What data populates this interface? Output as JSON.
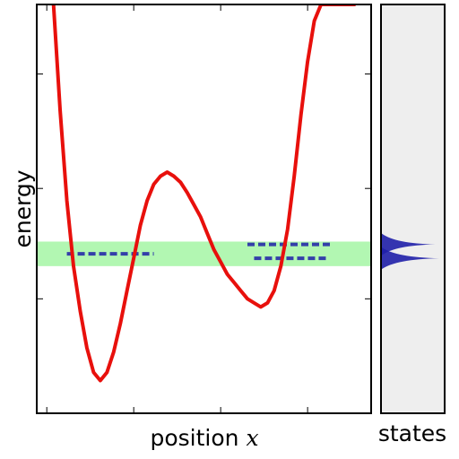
{
  "chart_data": {
    "type": "line",
    "main_panel": {
      "xlabel_text": "position",
      "xlabel_var": "x",
      "ylabel": "energy",
      "xlim": [
        0,
        1
      ],
      "ylim": [
        0,
        1
      ],
      "xticks": [
        0.03,
        0.29,
        0.55,
        0.81
      ],
      "yticks": [
        0.28,
        0.55,
        0.83
      ],
      "potential_curve": {
        "color": "#e8100c",
        "x": [
          0.05,
          0.07,
          0.09,
          0.11,
          0.13,
          0.15,
          0.17,
          0.19,
          0.21,
          0.23,
          0.25,
          0.27,
          0.29,
          0.31,
          0.33,
          0.35,
          0.37,
          0.39,
          0.41,
          0.43,
          0.45,
          0.47,
          0.49,
          0.51,
          0.53,
          0.55,
          0.57,
          0.59,
          0.61,
          0.63,
          0.65,
          0.67,
          0.69,
          0.71,
          0.73,
          0.75,
          0.77,
          0.79,
          0.81,
          0.83,
          0.85,
          0.87,
          0.89,
          0.91,
          0.93,
          0.95
        ],
        "y": [
          1.0,
          0.74,
          0.52,
          0.36,
          0.25,
          0.16,
          0.1,
          0.08,
          0.1,
          0.15,
          0.22,
          0.3,
          0.38,
          0.46,
          0.52,
          0.56,
          0.58,
          0.59,
          0.58,
          0.565,
          0.54,
          0.51,
          0.48,
          0.44,
          0.4,
          0.37,
          0.34,
          0.32,
          0.3,
          0.28,
          0.27,
          0.26,
          0.27,
          0.3,
          0.36,
          0.45,
          0.58,
          0.73,
          0.86,
          0.96,
          1.0,
          1.0,
          1.0,
          1.0,
          1.0,
          1.0
        ]
      },
      "energy_band": {
        "color": "#b2f7b2",
        "y_low": 0.36,
        "y_high": 0.42
      },
      "levels": [
        {
          "y": 0.39,
          "x_start": 0.09,
          "x_end": 0.35,
          "color": "#1f1fa8"
        },
        {
          "y": 0.413,
          "x_start": 0.63,
          "x_end": 0.88,
          "color": "#1f1fa8"
        },
        {
          "y": 0.379,
          "x_start": 0.65,
          "x_end": 0.87,
          "color": "#1f1fa8"
        }
      ]
    },
    "side_panel": {
      "xlabel": "states",
      "background": "#eeeeee",
      "peaks": [
        {
          "y": 0.413,
          "height": 0.93
        },
        {
          "y": 0.379,
          "height": 1.0
        }
      ],
      "fill_color": "#1f1fa8"
    }
  }
}
